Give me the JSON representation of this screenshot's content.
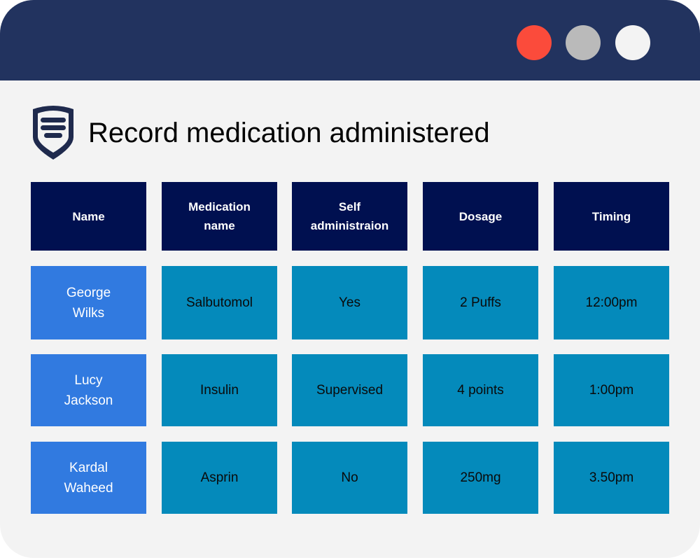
{
  "window": {
    "controls": [
      {
        "name": "close",
        "color": "#fb4b3b"
      },
      {
        "name": "minimize",
        "color": "#bababa"
      },
      {
        "name": "maximize",
        "color": "#f3f3f3"
      }
    ]
  },
  "page": {
    "title": "Record medication administered",
    "logo_icon": "shield-icon"
  },
  "table": {
    "headers": [
      "Name",
      "Medication name",
      "Self administraion",
      "Dosage",
      "Timing"
    ],
    "rows": [
      [
        "George Wilks",
        "Salbutomol",
        "Yes",
        "2 Puffs",
        "12:00pm"
      ],
      [
        "Lucy Jackson",
        "Insulin",
        "Supervised",
        "4 points",
        "1:00pm"
      ],
      [
        "Kardal Waheed",
        "Asprin",
        "No",
        "250mg",
        "3.50pm"
      ]
    ]
  },
  "colors": {
    "titlebar": "#22335f",
    "header": "#001050",
    "name_column": "#317ae0",
    "data_cells": "#048abb"
  }
}
